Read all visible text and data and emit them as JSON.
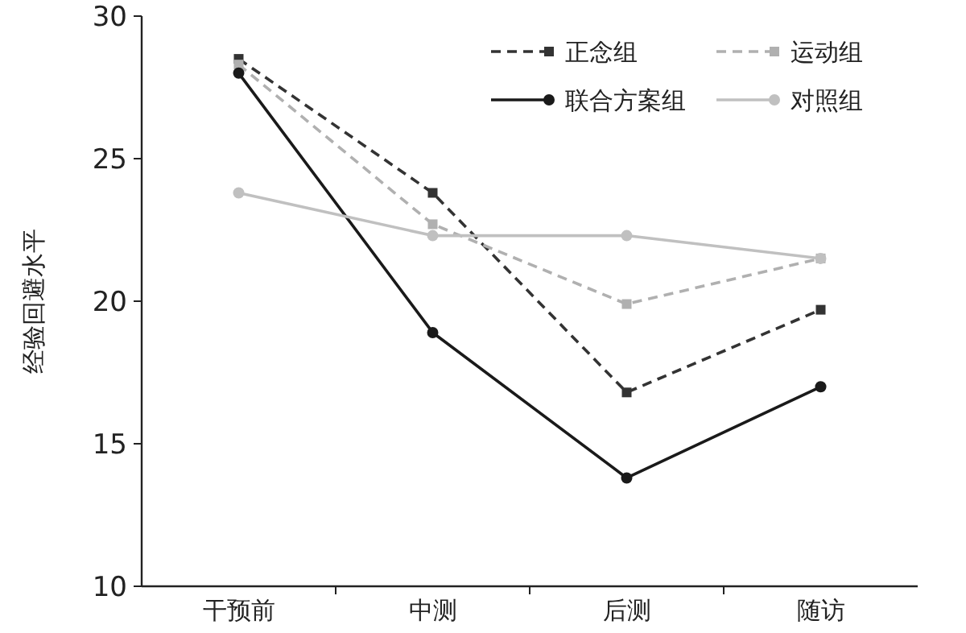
{
  "chart_data": {
    "type": "line",
    "ylabel": "经验回避水平",
    "categories": [
      "干预前",
      "中测",
      "后测",
      "随访"
    ],
    "series": [
      {
        "name": "正念组",
        "color": "#333333",
        "line_style": "dashed",
        "marker": "square",
        "values": [
          28.5,
          23.8,
          16.8,
          19.7
        ]
      },
      {
        "name": "运动组",
        "color": "#b0b0b0",
        "line_style": "dashed",
        "marker": "square",
        "values": [
          28.3,
          22.7,
          19.9,
          21.5
        ]
      },
      {
        "name": "联合方案组",
        "color": "#1a1a1a",
        "line_style": "solid",
        "marker": "circle",
        "values": [
          28.0,
          18.9,
          13.8,
          17.0
        ]
      },
      {
        "name": "对照组",
        "color": "#c0c0c0",
        "line_style": "solid",
        "marker": "circle",
        "values": [
          23.8,
          22.3,
          22.3,
          21.5
        ]
      }
    ],
    "ylim": [
      10,
      30
    ],
    "yticks": [
      10,
      15,
      20,
      25,
      30
    ],
    "grid": false,
    "legend": "top right"
  }
}
